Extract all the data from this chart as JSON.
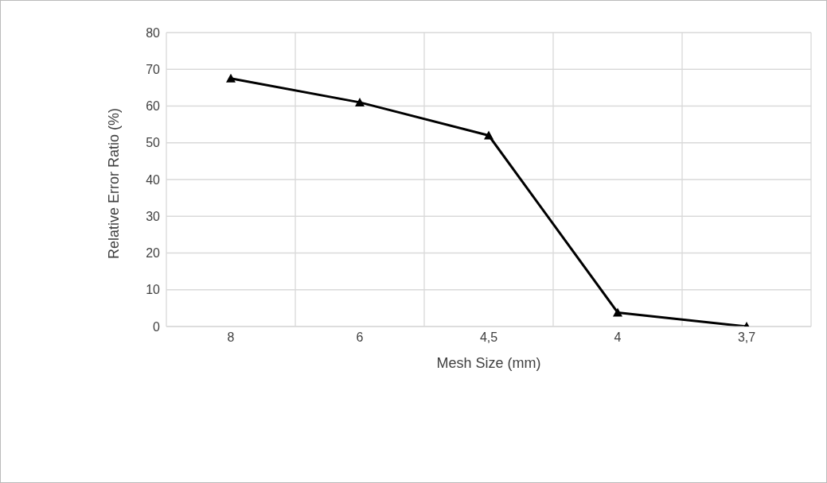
{
  "chart_data": {
    "type": "line",
    "xlabel": "Mesh Size (mm)",
    "ylabel": "Relative Error Ratio (%)",
    "categories": [
      "8",
      "6",
      "4,5",
      "4",
      "3,7"
    ],
    "series": [
      {
        "color": "#000000",
        "values": [
          67.5,
          61,
          52,
          3.8,
          0
        ]
      }
    ],
    "ylim": [
      0,
      80
    ],
    "yticks": [
      0,
      10,
      20,
      30,
      40,
      50,
      60,
      70,
      80
    ],
    "grid": true,
    "marker": "triangle",
    "line_style": "solid"
  }
}
